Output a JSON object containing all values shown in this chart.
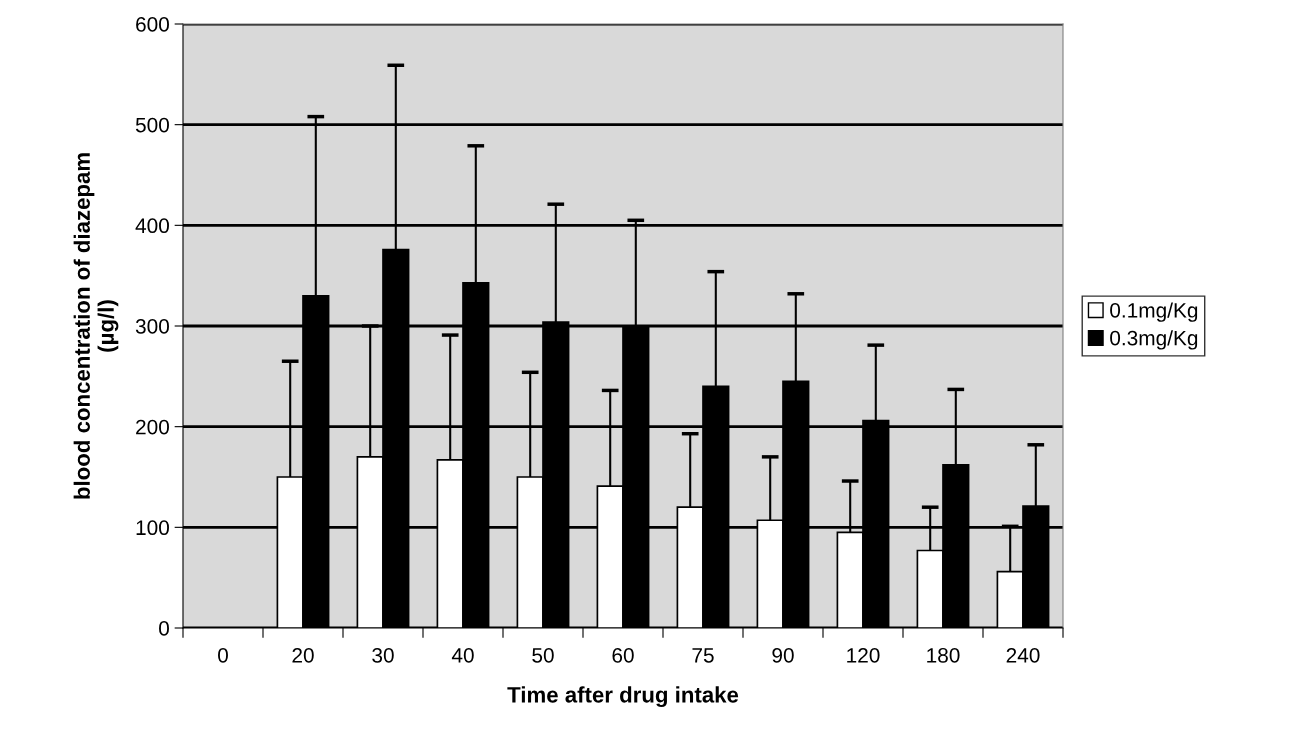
{
  "chart_data": {
    "type": "bar",
    "xlabel": "Time after drug intake",
    "ylabel": "blood concentration of diazepam\n(µg/l)",
    "categories": [
      "0",
      "20",
      "30",
      "40",
      "50",
      "60",
      "75",
      "90",
      "120",
      "180",
      "240"
    ],
    "series": [
      {
        "name": "0.1mg/Kg",
        "color": "#ffffff",
        "values": [
          null,
          150,
          170,
          167,
          150,
          141,
          120,
          107,
          95,
          77,
          56
        ],
        "errors": [
          null,
          115,
          130,
          124,
          104,
          95,
          73,
          63,
          51,
          43,
          45
        ]
      },
      {
        "name": "0.3mg/Kg",
        "color": "#000000",
        "values": [
          null,
          330,
          376,
          343,
          304,
          300,
          240,
          245,
          206,
          162,
          121
        ],
        "errors": [
          null,
          178,
          183,
          136,
          117,
          105,
          114,
          87,
          75,
          75,
          61
        ]
      }
    ],
    "ylim": [
      0,
      600
    ],
    "yticks": [
      0,
      100,
      200,
      300,
      400,
      500,
      600
    ],
    "grid": "y",
    "legend": "right"
  }
}
